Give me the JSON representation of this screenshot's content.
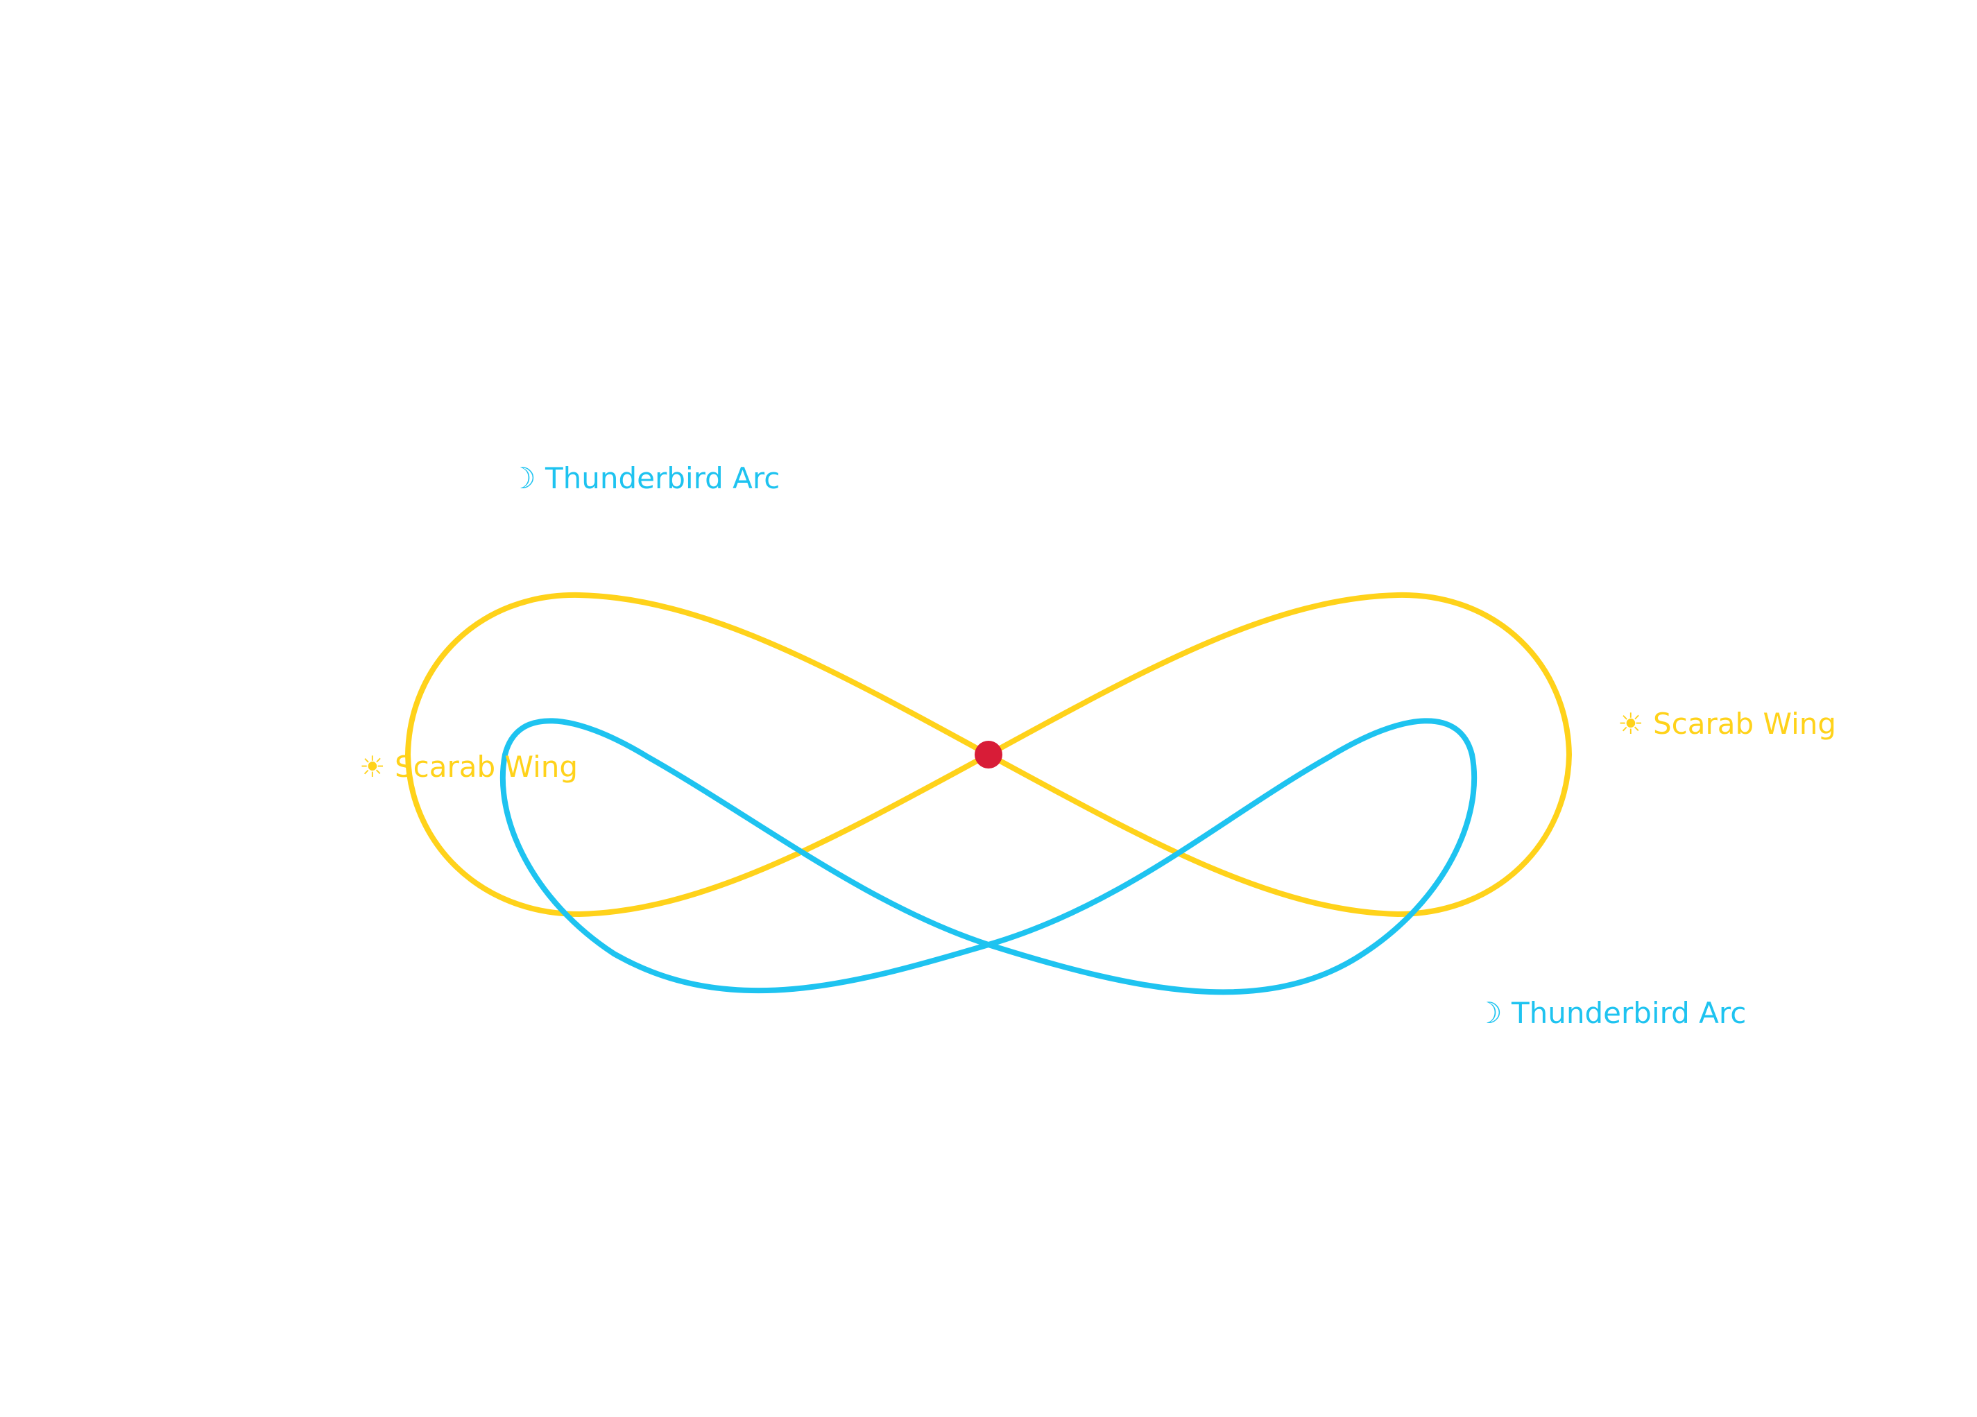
{
  "colors": {
    "scarab": "#ffd21a",
    "thunderbird": "#1ec3f0",
    "center": "#d81c37",
    "background": "#ffffff"
  },
  "labels": {
    "thunderbird_top": "☽ Thunderbird Arc",
    "thunderbird_bottom": "☽ Thunderbird Arc",
    "scarab_left": "☀ Scarab Wing",
    "scarab_right": "☀ Scarab Wing"
  },
  "curves": [
    {
      "name": "Scarab Wing",
      "shape": "figure-eight",
      "color": "scarab"
    },
    {
      "name": "Thunderbird Arc",
      "shape": "figure-eight",
      "color": "thunderbird"
    }
  ]
}
